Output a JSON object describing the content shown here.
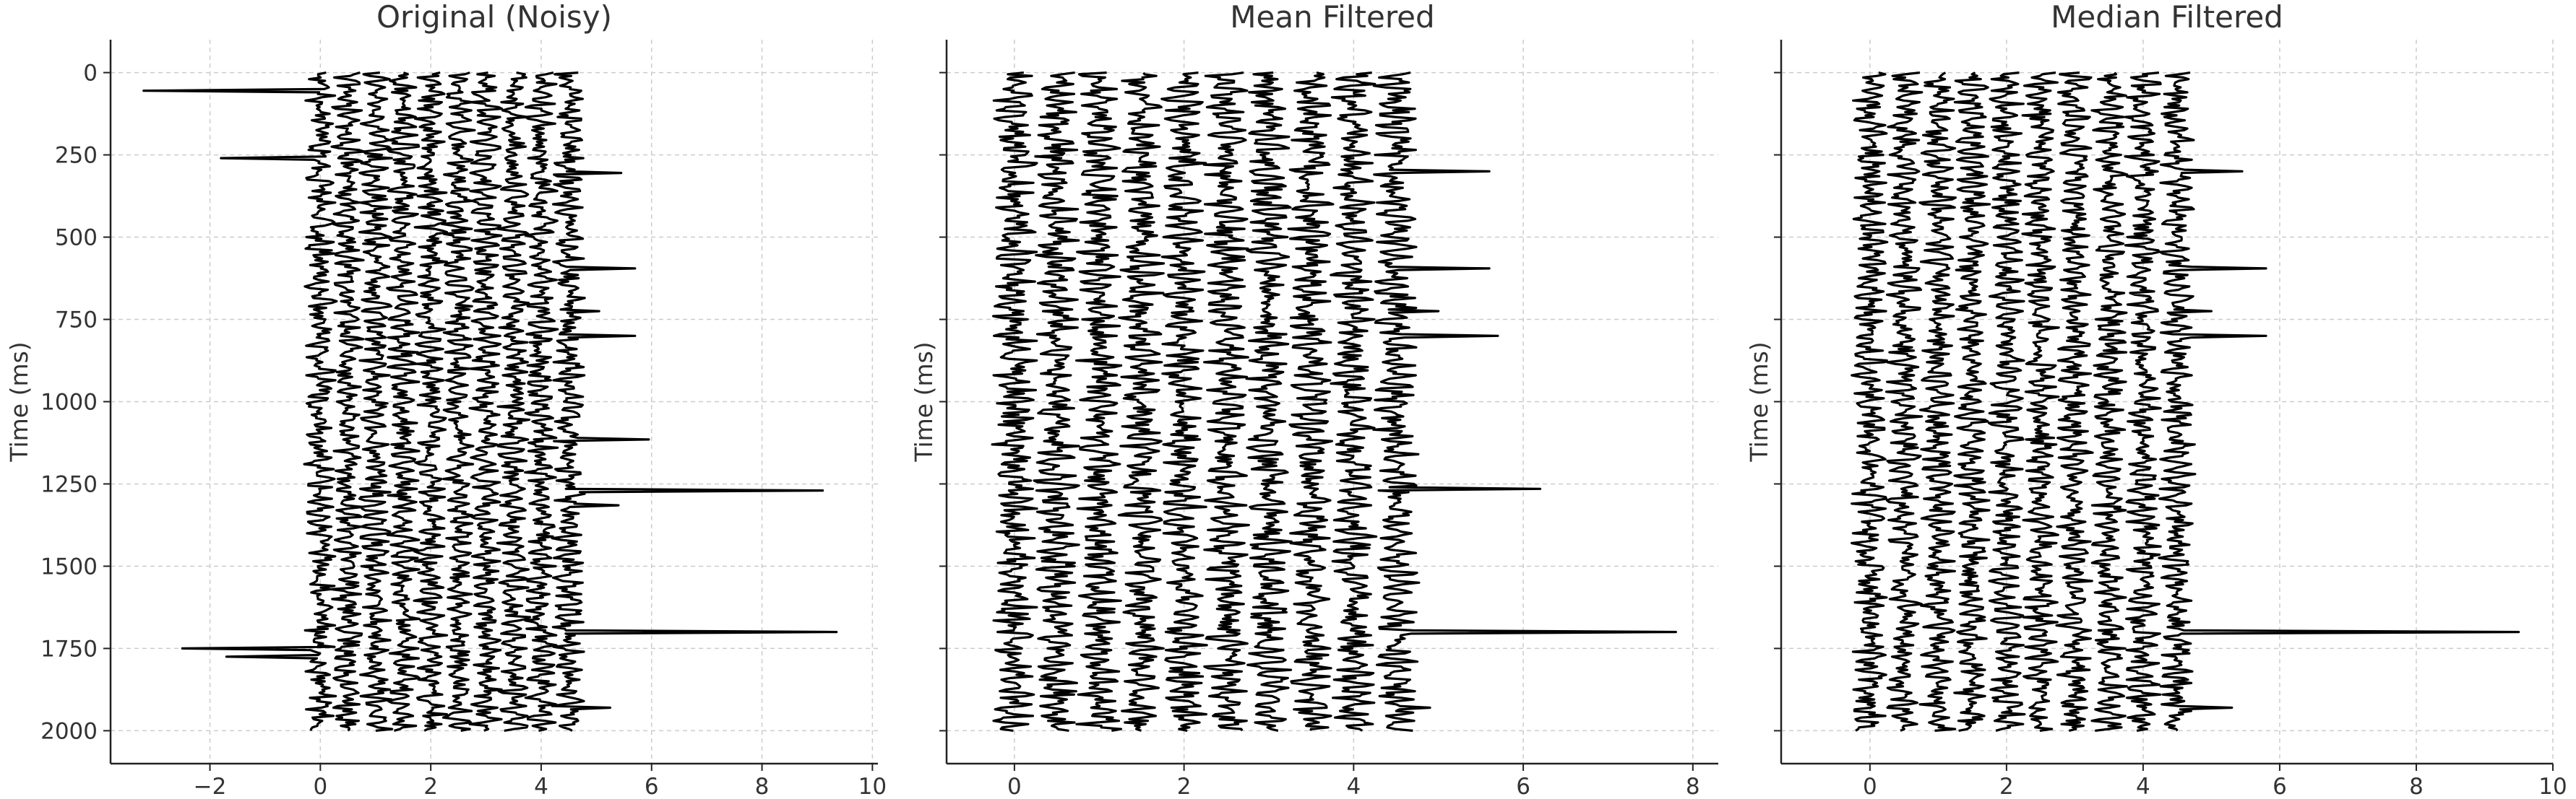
{
  "chart_data": [
    {
      "type": "line",
      "title": "Original (Noisy)",
      "xlabel": "",
      "ylabel": "Time (ms)",
      "xlim": [
        -3.8,
        10.1
      ],
      "ylim": [
        2100,
        -100
      ],
      "y_inverted": true,
      "xticks": [
        -2,
        0,
        2,
        4,
        6,
        8,
        10
      ],
      "xtick_labels": [
        "−2",
        "0",
        "2",
        "4",
        "6",
        "8",
        "10"
      ],
      "yticks": [
        0,
        250,
        500,
        750,
        1000,
        1250,
        1500,
        1750,
        2000
      ],
      "ytick_labels": [
        "0",
        "250",
        "500",
        "750",
        "1000",
        "1250",
        "1500",
        "1750",
        "2000"
      ],
      "ytick_labels_visible": true,
      "grid": true,
      "trace_count": 10,
      "trace_offsets": [
        0,
        0.5,
        1,
        1.5,
        2,
        2.5,
        3,
        3.5,
        4,
        4.5
      ],
      "time_range": [
        0,
        2000
      ],
      "spikes": [
        {
          "trace": 0,
          "time": 55,
          "amplitude": -3.2
        },
        {
          "trace": 0,
          "time": 262,
          "amplitude": -1.8
        },
        {
          "trace": 9,
          "time": 305,
          "amplitude": 0.95
        },
        {
          "trace": 9,
          "time": 595,
          "amplitude": 1.2
        },
        {
          "trace": 9,
          "time": 725,
          "amplitude": 0.55
        },
        {
          "trace": 9,
          "time": 800,
          "amplitude": 1.2
        },
        {
          "trace": 9,
          "time": 1115,
          "amplitude": 1.45
        },
        {
          "trace": 9,
          "time": 1270,
          "amplitude": 4.6
        },
        {
          "trace": 9,
          "time": 1315,
          "amplitude": 0.9
        },
        {
          "trace": 9,
          "time": 1700,
          "amplitude": 4.85
        },
        {
          "trace": 0,
          "time": 1750,
          "amplitude": -2.5
        },
        {
          "trace": 0,
          "time": 1775,
          "amplitude": -1.7
        },
        {
          "trace": 9,
          "time": 1930,
          "amplitude": 0.75
        }
      ]
    },
    {
      "type": "line",
      "title": "Mean Filtered",
      "xlabel": "",
      "ylabel": "Time (ms)",
      "xlim": [
        -0.8,
        8.3
      ],
      "ylim": [
        2100,
        -100
      ],
      "y_inverted": true,
      "xticks": [
        0,
        2,
        4,
        6,
        8
      ],
      "xtick_labels": [
        "0",
        "2",
        "4",
        "6",
        "8"
      ],
      "yticks": [
        0,
        250,
        500,
        750,
        1000,
        1250,
        1500,
        1750,
        2000
      ],
      "ytick_labels": [],
      "ytick_labels_visible": false,
      "grid": true,
      "trace_count": 10,
      "trace_offsets": [
        0,
        0.5,
        1,
        1.5,
        2,
        2.5,
        3,
        3.5,
        4,
        4.5
      ],
      "time_range": [
        0,
        2000
      ],
      "spikes": [
        {
          "trace": 9,
          "time": 300,
          "amplitude": 1.1
        },
        {
          "trace": 9,
          "time": 595,
          "amplitude": 1.1
        },
        {
          "trace": 9,
          "time": 725,
          "amplitude": 0.5
        },
        {
          "trace": 9,
          "time": 800,
          "amplitude": 1.2
        },
        {
          "trace": 9,
          "time": 1265,
          "amplitude": 1.7
        },
        {
          "trace": 9,
          "time": 1700,
          "amplitude": 3.3
        },
        {
          "trace": 9,
          "time": 1930,
          "amplitude": 0.4
        }
      ]
    },
    {
      "type": "line",
      "title": "Median Filtered",
      "xlabel": "",
      "ylabel": "Time (ms)",
      "xlim": [
        -1.3,
        10.0
      ],
      "ylim": [
        2100,
        -100
      ],
      "y_inverted": true,
      "xticks": [
        0,
        2,
        4,
        6,
        8,
        10
      ],
      "xtick_labels": [
        "0",
        "2",
        "4",
        "6",
        "8",
        "10"
      ],
      "yticks": [
        0,
        250,
        500,
        750,
        1000,
        1250,
        1500,
        1750,
        2000
      ],
      "ytick_labels": [],
      "ytick_labels_visible": false,
      "grid": true,
      "trace_count": 10,
      "trace_offsets": [
        0,
        0.5,
        1,
        1.5,
        2,
        2.5,
        3,
        3.5,
        4,
        4.5
      ],
      "time_range": [
        0,
        2000
      ],
      "spikes": [
        {
          "trace": 9,
          "time": 300,
          "amplitude": 0.95
        },
        {
          "trace": 9,
          "time": 595,
          "amplitude": 1.3
        },
        {
          "trace": 9,
          "time": 725,
          "amplitude": 0.5
        },
        {
          "trace": 9,
          "time": 800,
          "amplitude": 1.3
        },
        {
          "trace": 9,
          "time": 1700,
          "amplitude": 5.0
        },
        {
          "trace": 9,
          "time": 1930,
          "amplitude": 0.8
        }
      ]
    }
  ]
}
